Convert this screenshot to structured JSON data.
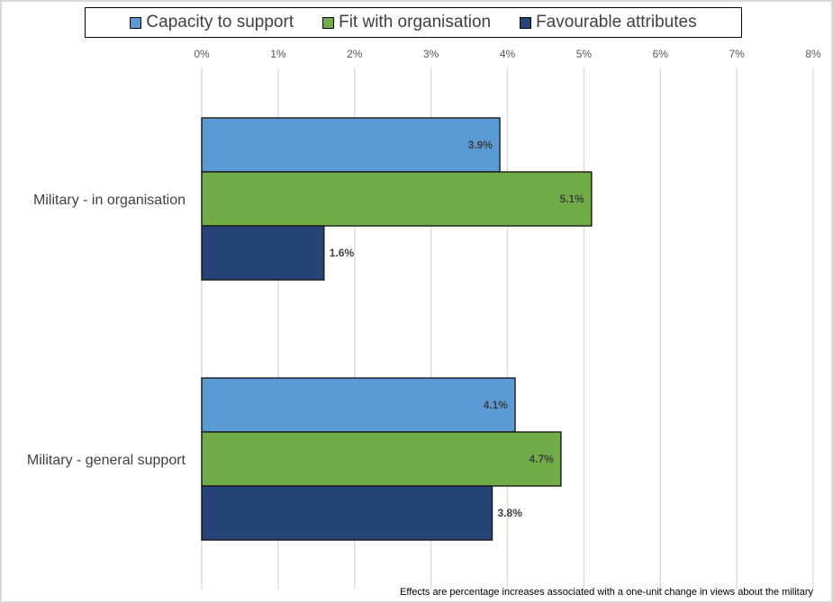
{
  "chart_data": {
    "type": "bar",
    "orientation": "horizontal",
    "title": "",
    "xlabel": "",
    "ylabel": "",
    "categories": [
      "Military - in organisation",
      "Military - general support"
    ],
    "series": [
      {
        "name": "Capacity to support",
        "color": "#5b9bd5",
        "values": [
          3.9,
          4.1
        ],
        "labels": [
          "3.9%",
          "4.1%"
        ]
      },
      {
        "name": "Fit with organisation",
        "color": "#70ad47",
        "values": [
          5.1,
          4.7
        ],
        "labels": [
          "5.1%",
          "4.7%"
        ]
      },
      {
        "name": "Favourable attributes",
        "color": "#264478",
        "values": [
          1.6,
          3.8
        ],
        "labels": [
          "1.6%",
          "3.8%"
        ]
      }
    ],
    "xlim": [
      0,
      8
    ],
    "x_ticks": [
      0,
      1,
      2,
      3,
      4,
      5,
      6,
      7,
      8
    ],
    "x_tick_labels": [
      "0%",
      "1%",
      "2%",
      "3%",
      "4%",
      "5%",
      "6%",
      "7%",
      "8%"
    ],
    "x_axis_position": "top",
    "grid": true,
    "legend_position": "top",
    "annotation": "Effects are percentage increases associated with a one-unit change in views about the military"
  },
  "colors": {
    "grid": "#d9d9d9",
    "tick_text": "#595959",
    "category_text": "#404040",
    "label_text": "#404040"
  }
}
